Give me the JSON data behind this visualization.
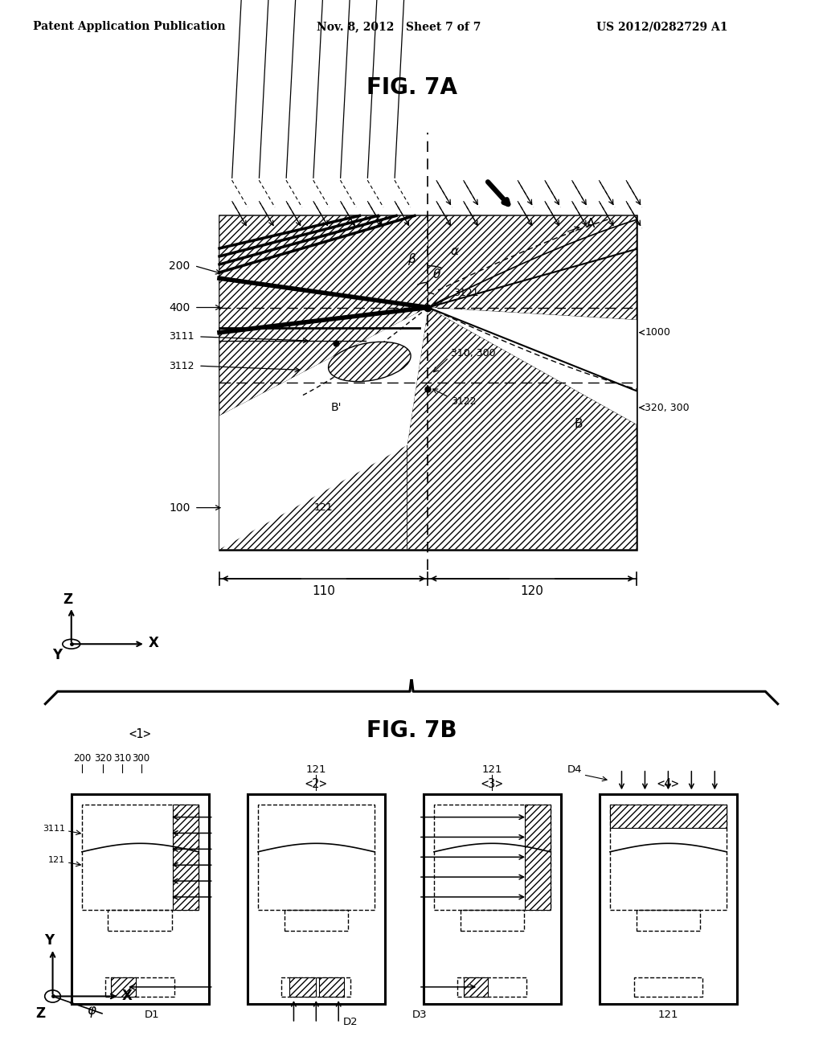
{
  "title_header_left": "Patent Application Publication",
  "title_header_mid": "Nov. 8, 2012   Sheet 7 of 7",
  "title_header_right": "US 2012/0282729 A1",
  "fig7a_title": "FIG. 7A",
  "fig7b_title": "FIG. 7B",
  "background": "#ffffff",
  "line_color": "#000000",
  "labels_left_7a": [
    "200",
    "400",
    "3111",
    "3112",
    "100"
  ],
  "labels_right_7a": [
    "1000",
    "320, 300"
  ],
  "labels_center_7a": [
    "3121",
    "310, 300",
    "3122"
  ],
  "angle_labels": [
    "α",
    "β",
    "θ"
  ],
  "dim_labels": [
    "110",
    "120"
  ],
  "panel_labels": [
    "<1>",
    "<2>",
    "<3>",
    "<4>"
  ],
  "panel_top_labels": [
    "200",
    "320",
    "310",
    "300"
  ],
  "side_labels_7b": [
    "3111",
    "121"
  ],
  "d_labels": [
    "D1",
    "D2",
    "D3",
    "D4"
  ]
}
